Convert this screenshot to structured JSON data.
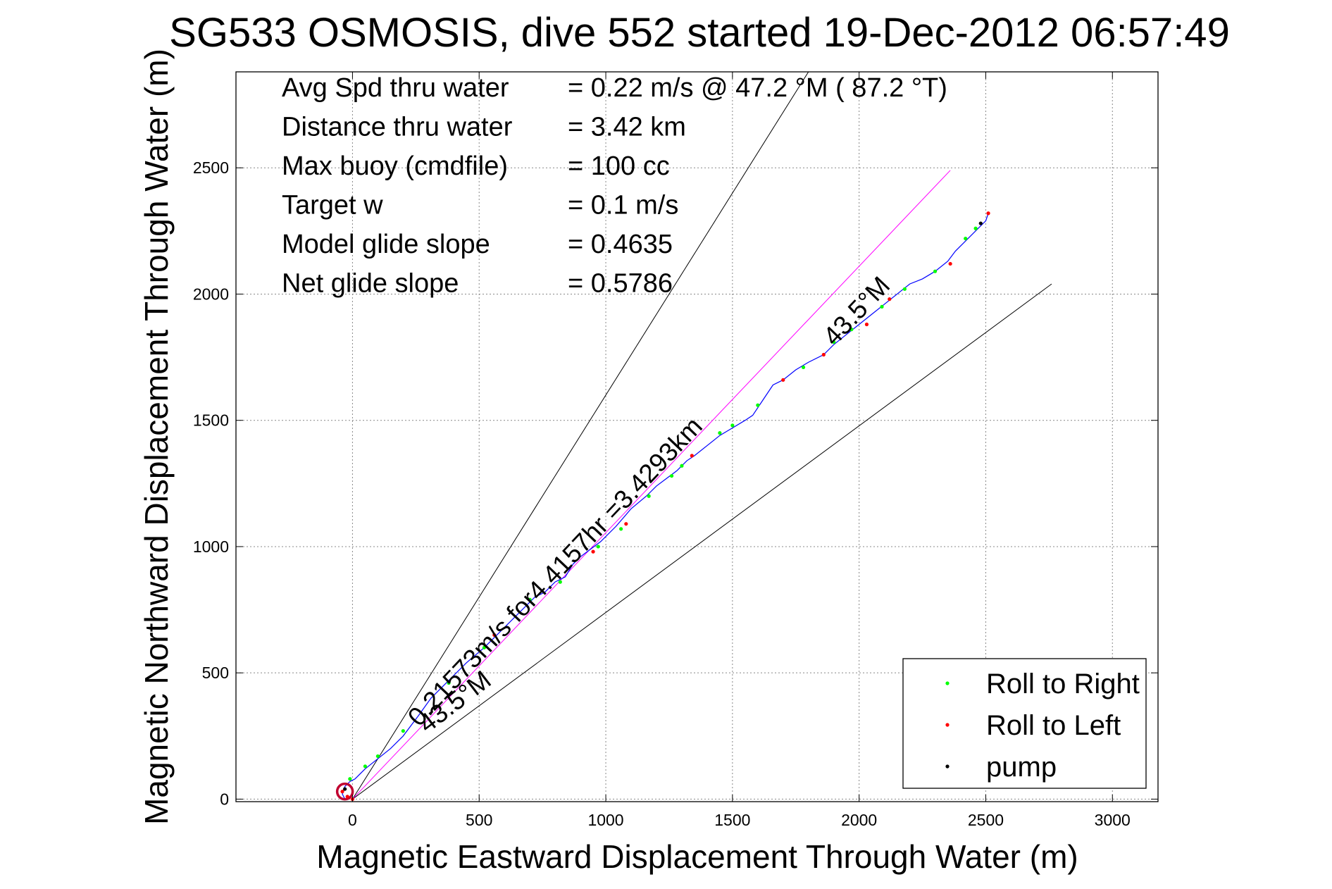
{
  "chart_data": {
    "type": "scatter",
    "title": "SG533 OSMOSIS, dive 552 started 19-Dec-2012 06:57:49",
    "xlabel": "Magnetic Eastward Displacement Through Water (m)",
    "ylabel": "Magnetic Northward Displacement Through Water (m)",
    "xlim": [
      -460,
      3180
    ],
    "ylim": [
      -10,
      2880
    ],
    "xticks": [
      0,
      500,
      1000,
      1500,
      2000,
      2500,
      3000
    ],
    "yticks": [
      0,
      500,
      1000,
      1500,
      2000,
      2500
    ],
    "grid": true,
    "legend_position": "bottom-right",
    "info_lines": [
      {
        "label": "Avg Spd thru water",
        "value": "=  0.22 m/s @  47.2 °M ( 87.2 °T)"
      },
      {
        "label": "Distance thru water",
        "value": "=  3.42 km"
      },
      {
        "label": "Max buoy (cmdfile)",
        "value": "= 100 cc"
      },
      {
        "label": "Target w",
        "value": "= 0.1 m/s"
      },
      {
        "label": "Model glide slope",
        "value": "= 0.4635"
      },
      {
        "label": "Net glide slope",
        "value": "= 0.5786"
      }
    ],
    "annotations": {
      "speed": "0.21573m/s for4.4157hr =3.4293km",
      "heading_upper": "43.5°M",
      "heading_lower": "43.5°M"
    },
    "reference_lines": [
      {
        "name": "upper-bound",
        "color": "#000000",
        "x": [
          0,
          1800
        ],
        "y": [
          0,
          2880
        ]
      },
      {
        "name": "lower-bound",
        "color": "#000000",
        "x": [
          0,
          2760
        ],
        "y": [
          0,
          2040
        ]
      },
      {
        "name": "target-heading",
        "color": "#ff00ff",
        "x": [
          0,
          2360
        ],
        "y": [
          0,
          2490
        ]
      }
    ],
    "track": {
      "color": "#0000ff",
      "x": [
        -30,
        -40,
        -30,
        -10,
        0,
        10,
        20,
        50,
        100,
        150,
        200,
        260,
        310,
        380,
        450,
        520,
        600,
        680,
        720,
        760,
        800,
        840,
        870,
        900,
        940,
        980,
        1040,
        1100,
        1160,
        1200,
        1240,
        1280,
        1320,
        1350,
        1400,
        1450,
        1500,
        1550,
        1580,
        1620,
        1660,
        1700,
        1750,
        1800,
        1860,
        1900,
        1950,
        2000,
        2050,
        2100,
        2150,
        2200,
        2250,
        2300,
        2350,
        2380,
        2420,
        2460,
        2500,
        2510
      ],
      "y": [
        0,
        20,
        50,
        70,
        75,
        80,
        90,
        120,
        160,
        200,
        250,
        330,
        400,
        470,
        540,
        600,
        680,
        760,
        800,
        820,
        860,
        880,
        930,
        960,
        990,
        1020,
        1080,
        1150,
        1200,
        1240,
        1270,
        1300,
        1340,
        1360,
        1400,
        1440,
        1470,
        1500,
        1520,
        1580,
        1640,
        1660,
        1700,
        1730,
        1760,
        1800,
        1840,
        1880,
        1920,
        1960,
        2000,
        2040,
        2060,
        2090,
        2130,
        2170,
        2210,
        2250,
        2290,
        2320
      ]
    },
    "series": [
      {
        "name": "Roll to Right",
        "color": "#00ff00",
        "x": [
          -10,
          50,
          100,
          200,
          380,
          520,
          700,
          820,
          970,
          1060,
          1170,
          1260,
          1300,
          1450,
          1500,
          1600,
          1780,
          1900,
          1970,
          2090,
          2180,
          2300,
          2420,
          2460
        ],
        "y": [
          80,
          130,
          170,
          270,
          460,
          600,
          790,
          860,
          1000,
          1070,
          1200,
          1280,
          1320,
          1450,
          1480,
          1560,
          1710,
          1810,
          1860,
          1950,
          2020,
          2090,
          2220,
          2260
        ]
      },
      {
        "name": "Roll to Left",
        "color": "#ff0000",
        "x": [
          -40,
          -20,
          0,
          560,
          950,
          1080,
          1340,
          1700,
          1860,
          2030,
          2120,
          2360,
          2510
        ],
        "y": [
          30,
          10,
          0,
          650,
          980,
          1090,
          1360,
          1660,
          1760,
          1880,
          1980,
          2120,
          2320
        ]
      },
      {
        "name": "pump",
        "color": "#000000",
        "x": [
          -30,
          2480
        ],
        "y": [
          40,
          2280
        ]
      }
    ]
  }
}
